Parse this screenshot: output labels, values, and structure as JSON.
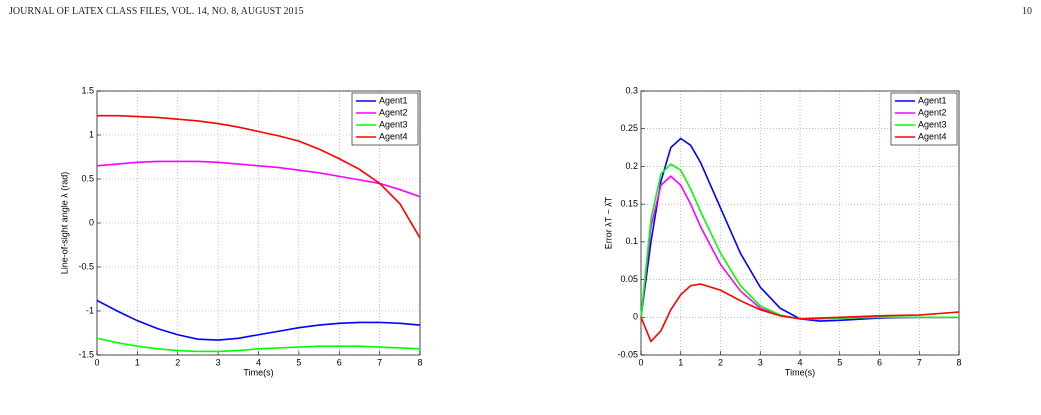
{
  "header": {
    "journal": "JOURNAL OF LATEX CLASS FILES, VOL. 14, NO. 8, AUGUST 2015",
    "page": "10"
  },
  "chart_data": [
    {
      "type": "line",
      "xlabel": "Time(s)",
      "ylabel": "Line-of-sight angle λ (rad)",
      "x": [
        0,
        0.5,
        1,
        1.5,
        2,
        2.5,
        3,
        3.5,
        4,
        4.5,
        5,
        5.5,
        6,
        6.5,
        7,
        7.5,
        8
      ],
      "series": [
        {
          "name": "Agent1",
          "color": "#0000ff",
          "values": [
            -0.88,
            -1.0,
            -1.11,
            -1.2,
            -1.27,
            -1.32,
            -1.33,
            -1.31,
            -1.27,
            -1.23,
            -1.19,
            -1.16,
            -1.14,
            -1.13,
            -1.13,
            -1.14,
            -1.16
          ]
        },
        {
          "name": "Agent2",
          "color": "#ff00ff",
          "values": [
            0.65,
            0.67,
            0.69,
            0.7,
            0.7,
            0.7,
            0.69,
            0.67,
            0.65,
            0.63,
            0.6,
            0.57,
            0.53,
            0.49,
            0.45,
            0.38,
            0.3
          ]
        },
        {
          "name": "Agent3",
          "color": "#00ff00",
          "values": [
            -1.31,
            -1.36,
            -1.4,
            -1.43,
            -1.45,
            -1.46,
            -1.46,
            -1.45,
            -1.43,
            -1.42,
            -1.41,
            -1.4,
            -1.4,
            -1.4,
            -1.41,
            -1.42,
            -1.43
          ]
        },
        {
          "name": "Agent4",
          "color": "#ff0000",
          "values": [
            1.22,
            1.22,
            1.21,
            1.2,
            1.18,
            1.16,
            1.13,
            1.09,
            1.04,
            0.99,
            0.93,
            0.84,
            0.73,
            0.61,
            0.45,
            0.22,
            -0.17
          ]
        }
      ],
      "xlim": [
        0,
        8
      ],
      "xticks": [
        0,
        1,
        2,
        3,
        4,
        5,
        6,
        7,
        8
      ],
      "ylim": [
        -1.5,
        1.5
      ],
      "yticks": [
        -1.5,
        -1,
        -0.5,
        0,
        0.5,
        1,
        1.5
      ],
      "grid": true,
      "legend": "top-right"
    },
    {
      "type": "line",
      "xlabel": "Time(s)",
      "ylabel": "Error λT − λ̂T",
      "x": [
        0,
        0.25,
        0.5,
        0.75,
        1,
        1.25,
        1.5,
        2,
        2.5,
        3,
        3.5,
        4,
        4.5,
        5,
        6,
        7,
        8
      ],
      "series": [
        {
          "name": "Agent1",
          "color": "#0000ff",
          "values": [
            0,
            0.1,
            0.18,
            0.225,
            0.237,
            0.228,
            0.205,
            0.145,
            0.085,
            0.04,
            0.012,
            -0.002,
            -0.005,
            -0.004,
            -0.001,
            0,
            0
          ]
        },
        {
          "name": "Agent2",
          "color": "#ff00ff",
          "values": [
            0,
            0.12,
            0.175,
            0.187,
            0.175,
            0.15,
            0.12,
            0.07,
            0.035,
            0.012,
            0.002,
            -0.002,
            -0.002,
            -0.001,
            0,
            0,
            0
          ]
        },
        {
          "name": "Agent3",
          "color": "#00ff00",
          "values": [
            0,
            0.13,
            0.19,
            0.203,
            0.195,
            0.17,
            0.14,
            0.085,
            0.042,
            0.015,
            0.003,
            -0.002,
            -0.002,
            -0.001,
            0,
            0,
            0
          ]
        },
        {
          "name": "Agent4",
          "color": "#ff0000",
          "values": [
            0,
            -0.032,
            -0.018,
            0.01,
            0.03,
            0.042,
            0.044,
            0.036,
            0.022,
            0.01,
            0.002,
            -0.002,
            -0.001,
            0,
            0.002,
            0.003,
            0.007
          ]
        }
      ],
      "xlim": [
        0,
        8
      ],
      "xticks": [
        0,
        1,
        2,
        3,
        4,
        5,
        6,
        7,
        8
      ],
      "ylim": [
        -0.05,
        0.3
      ],
      "yticks": [
        -0.05,
        0,
        0.05,
        0.1,
        0.15,
        0.2,
        0.25,
        0.3
      ],
      "grid": true,
      "legend": "top-right"
    }
  ]
}
